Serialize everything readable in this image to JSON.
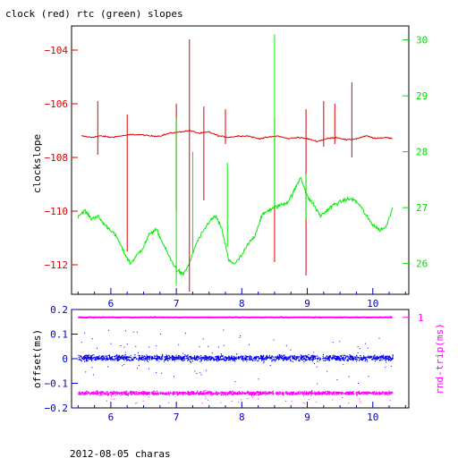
{
  "title": "clock (red) rtc (green) slopes",
  "footer": "2012-08-05 charas",
  "colors": {
    "frame": "#000000",
    "left_axis": "#e00000",
    "right_axis": "#00dd00",
    "bottom_axis": "#0000cc",
    "clock_series": "#dd0000",
    "rtc_series": "#00ee00",
    "offset_series": "#0000ee",
    "rtt_series": "#ff00ff"
  },
  "chart_data": [
    {
      "type": "line",
      "title": "clock (red) rtc (green) slopes",
      "ylabel": "clockslope",
      "xlim": [
        5.4,
        10.55
      ],
      "ylim": [
        -113.1,
        -103.1
      ],
      "y2lim": [
        25.45,
        30.25
      ],
      "x_ticks": [
        6,
        7,
        8,
        9,
        10
      ],
      "y_ticks": [
        -104,
        -106,
        -108,
        -110,
        -112
      ],
      "y2_ticks": [
        30,
        29,
        28,
        27,
        26
      ],
      "grid": false,
      "series": [
        {
          "name": "clock",
          "axis": "left",
          "color": "#dd0000",
          "x": [
            5.55,
            5.7,
            5.85,
            6.0,
            6.15,
            6.3,
            6.45,
            6.6,
            6.75,
            6.9,
            7.05,
            7.2,
            7.35,
            7.5,
            7.65,
            7.8,
            7.95,
            8.1,
            8.25,
            8.4,
            8.55,
            8.7,
            8.85,
            9.0,
            9.15,
            9.3,
            9.45,
            9.6,
            9.75,
            9.9,
            10.05,
            10.2,
            10.3
          ],
          "y": [
            -107.2,
            -107.25,
            -107.2,
            -107.25,
            -107.2,
            -107.15,
            -107.15,
            -107.2,
            -107.2,
            -107.1,
            -107.05,
            -107.0,
            -107.1,
            -107.05,
            -107.2,
            -107.25,
            -107.2,
            -107.2,
            -107.3,
            -107.25,
            -107.2,
            -107.3,
            -107.25,
            -107.3,
            -107.4,
            -107.3,
            -107.25,
            -107.35,
            -107.3,
            -107.2,
            -107.3,
            -107.25,
            -107.3
          ]
        },
        {
          "name": "rtc",
          "axis": "right",
          "color": "#00ee00",
          "x": [
            5.5,
            5.6,
            5.7,
            5.8,
            5.9,
            6.0,
            6.1,
            6.2,
            6.3,
            6.4,
            6.5,
            6.6,
            6.7,
            6.8,
            6.9,
            7.0,
            7.1,
            7.2,
            7.3,
            7.4,
            7.5,
            7.6,
            7.7,
            7.8,
            7.9,
            8.0,
            8.1,
            8.2,
            8.3,
            8.4,
            8.5,
            8.6,
            8.7,
            8.8,
            8.9,
            9.0,
            9.1,
            9.2,
            9.3,
            9.4,
            9.5,
            9.6,
            9.7,
            9.8,
            9.9,
            10.0,
            10.1,
            10.2,
            10.3
          ],
          "y": [
            26.85,
            26.95,
            26.8,
            26.85,
            26.7,
            26.6,
            26.45,
            26.2,
            26.0,
            26.15,
            26.3,
            26.55,
            26.6,
            26.35,
            26.1,
            25.9,
            25.8,
            26.0,
            26.35,
            26.55,
            26.75,
            26.85,
            26.6,
            26.05,
            26.0,
            26.15,
            26.35,
            26.5,
            26.85,
            26.95,
            27.0,
            27.05,
            27.1,
            27.3,
            27.55,
            27.2,
            27.05,
            26.85,
            26.95,
            27.05,
            27.1,
            27.15,
            27.15,
            27.05,
            26.85,
            26.7,
            26.6,
            26.65,
            27.0
          ]
        }
      ]
    },
    {
      "type": "scatter",
      "ylabel": "offset(ms)",
      "y2label": "rnd-trip(ms)",
      "xlim": [
        5.4,
        10.55
      ],
      "ylim": [
        -0.2,
        0.2
      ],
      "x_ticks": [
        6,
        7,
        8,
        9,
        10
      ],
      "y_ticks": [
        0.2,
        0.1,
        0,
        -0.1,
        -0.2
      ],
      "y_tick_labels": [
        "0.2",
        "0.1",
        "0",
        "−0.1",
        "−0.2"
      ],
      "y2_ticks": [
        1
      ],
      "grid": false,
      "series": [
        {
          "name": "offset",
          "axis": "left",
          "color": "#0000ee",
          "center": 0.005,
          "spread": 0.02
        },
        {
          "name": "rnd-trip",
          "axis": "right",
          "color": "#ff00ff",
          "center_line": 0.168,
          "band_center": -0.138,
          "spread": 0.012
        }
      ]
    }
  ]
}
